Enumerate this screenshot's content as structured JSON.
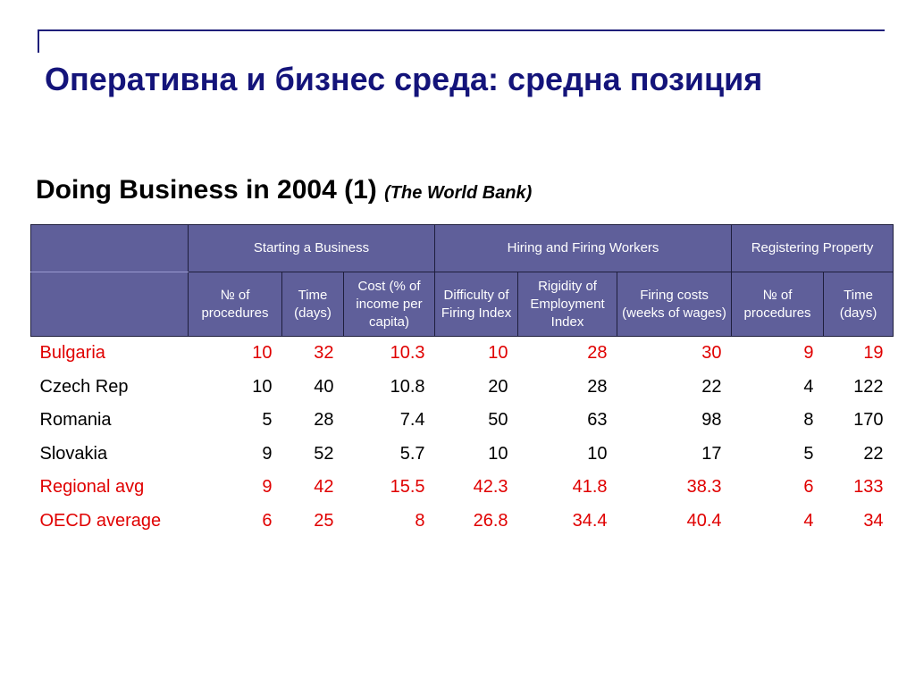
{
  "title": "Оперативна и бизнес среда: средна позиция",
  "subtitle": {
    "main": "Doing Business in 2004 (1)",
    "source": "(The World Bank)"
  },
  "table": {
    "groups": [
      "Starting a Business",
      "Hiring and Firing Workers",
      "Registering Property"
    ],
    "columns": [
      "№ of procedures",
      "Time (days)",
      "Cost (% of income per capita)",
      "Difficulty of Firing Index",
      "Rigidity of Employment Index",
      "Firing costs (weeks of wages)",
      "№ of procedures",
      "Time (days)"
    ],
    "rows": [
      {
        "name": "Bulgaria",
        "values": [
          "10",
          "32",
          "10.3",
          "10",
          "28",
          "30",
          "9",
          "19"
        ],
        "highlight": true
      },
      {
        "name": "Czech Rep",
        "values": [
          "10",
          "40",
          "10.8",
          "20",
          "28",
          "22",
          "4",
          "122"
        ],
        "highlight": false
      },
      {
        "name": "Romania",
        "values": [
          "5",
          "28",
          "7.4",
          "50",
          "63",
          "98",
          "8",
          "170"
        ],
        "highlight": false
      },
      {
        "name": "Slovakia",
        "values": [
          "9",
          "52",
          "5.7",
          "10",
          "10",
          "17",
          "5",
          "22"
        ],
        "highlight": false
      },
      {
        "name": "Regional avg",
        "values": [
          "9",
          "42",
          "15.5",
          "42.3",
          "41.8",
          "38.3",
          "6",
          "133"
        ],
        "highlight": true
      },
      {
        "name": "OECD average",
        "values": [
          "6",
          "25",
          "8",
          "26.8",
          "34.4",
          "40.4",
          "4",
          "34"
        ],
        "highlight": true
      }
    ]
  },
  "colors": {
    "title": "#14147a",
    "header_bg": "#5f5f9a",
    "highlight_text": "#e00000"
  }
}
